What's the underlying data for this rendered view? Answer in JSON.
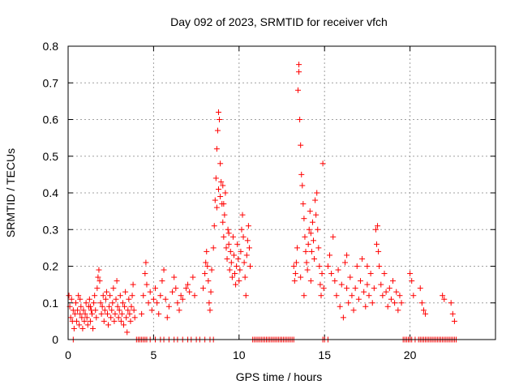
{
  "chart_data": {
    "type": "scatter",
    "title": "Day 092 of 2023, SRMTID for receiver vfch",
    "xlabel": "GPS time / hours",
    "ylabel": "SRMTID / TECUs",
    "xlim": [
      0,
      25
    ],
    "ylim": [
      0,
      0.8
    ],
    "xticks": [
      0,
      5,
      10,
      15,
      20
    ],
    "xtick_labels": [
      "0",
      "5",
      "10",
      "15",
      "20"
    ],
    "yticks": [
      0,
      0.1,
      0.2,
      0.3,
      0.4,
      0.5,
      0.6,
      0.7,
      0.8
    ],
    "ytick_labels": [
      "0",
      "0.1",
      "0.2",
      "0.3",
      "0.4",
      "0.5",
      "0.6",
      "0.7",
      "0.8"
    ],
    "grid": true,
    "marker": "+",
    "series": [
      {
        "name": "SRMTID",
        "color": "#ff0000",
        "points": [
          [
            0.05,
            0.12
          ],
          [
            0.1,
            0.09
          ],
          [
            0.15,
            0.06
          ],
          [
            0.2,
            0.11
          ],
          [
            0.25,
            0.05
          ],
          [
            0.3,
            0.08
          ],
          [
            0.35,
            0.03
          ],
          [
            0.4,
            0.07
          ],
          [
            0.45,
            0.1
          ],
          [
            0.5,
            0.05
          ],
          [
            0.55,
            0.08
          ],
          [
            0.6,
            0.12
          ],
          [
            0.65,
            0.04
          ],
          [
            0.7,
            0.07
          ],
          [
            0.75,
            0.09
          ],
          [
            0.8,
            0.06
          ],
          [
            0.85,
            0.03
          ],
          [
            0.9,
            0.08
          ],
          [
            0.95,
            0.05
          ],
          [
            1.0,
            0.07
          ],
          [
            1.05,
            0.1
          ],
          [
            1.1,
            0.06
          ],
          [
            1.15,
            0.04
          ],
          [
            1.2,
            0.09
          ],
          [
            1.25,
            0.11
          ],
          [
            1.3,
            0.05
          ],
          [
            1.35,
            0.08
          ],
          [
            1.4,
            0.07
          ],
          [
            1.45,
            0.03
          ],
          [
            1.5,
            0.1
          ],
          [
            1.55,
            0.12
          ],
          [
            1.6,
            0.08
          ],
          [
            1.65,
            0.06
          ],
          [
            1.7,
            0.14
          ],
          [
            1.75,
            0.17
          ],
          [
            1.8,
            0.19
          ],
          [
            1.85,
            0.16
          ],
          [
            1.9,
            0.1
          ],
          [
            1.95,
            0.07
          ],
          [
            2.0,
            0.09
          ],
          [
            2.05,
            0.12
          ],
          [
            2.1,
            0.05
          ],
          [
            2.15,
            0.08
          ],
          [
            2.2,
            0.11
          ],
          [
            2.25,
            0.13
          ],
          [
            2.3,
            0.07
          ],
          [
            2.35,
            0.04
          ],
          [
            2.4,
            0.09
          ],
          [
            2.45,
            0.12
          ],
          [
            2.5,
            0.06
          ],
          [
            2.55,
            0.08
          ],
          [
            2.6,
            0.1
          ],
          [
            2.65,
            0.14
          ],
          [
            2.7,
            0.05
          ],
          [
            2.75,
            0.07
          ],
          [
            2.8,
            0.11
          ],
          [
            2.85,
            0.16
          ],
          [
            2.9,
            0.09
          ],
          [
            2.95,
            0.06
          ],
          [
            3.0,
            0.08
          ],
          [
            3.05,
            0.12
          ],
          [
            3.1,
            0.05
          ],
          [
            3.15,
            0.07
          ],
          [
            3.2,
            0.1
          ],
          [
            3.25,
            0.04
          ],
          [
            3.3,
            0.09
          ],
          [
            3.35,
            0.13
          ],
          [
            3.4,
            0.06
          ],
          [
            3.45,
            0.02
          ],
          [
            3.5,
            0.08
          ],
          [
            3.55,
            0.11
          ],
          [
            3.6,
            0.07
          ],
          [
            3.65,
            0.05
          ],
          [
            3.7,
            0.09
          ],
          [
            3.75,
            0.12
          ],
          [
            3.8,
            0.15
          ],
          [
            3.85,
            0.08
          ],
          [
            3.9,
            0.06
          ],
          [
            1.3,
            0.09
          ],
          [
            0.7,
            0.11
          ],
          [
            4.3,
            0.07
          ],
          [
            4.4,
            0.12
          ],
          [
            4.5,
            0.18
          ],
          [
            4.55,
            0.21
          ],
          [
            4.6,
            0.15
          ],
          [
            4.7,
            0.1
          ],
          [
            4.8,
            0.13
          ],
          [
            4.9,
            0.08
          ],
          [
            5.0,
            0.11
          ],
          [
            5.1,
            0.14
          ],
          [
            5.2,
            0.1
          ],
          [
            5.3,
            0.07
          ],
          [
            5.4,
            0.12
          ],
          [
            5.5,
            0.16
          ],
          [
            5.6,
            0.19
          ],
          [
            5.7,
            0.11
          ],
          [
            5.8,
            0.06
          ],
          [
            5.9,
            0.09
          ],
          [
            6.1,
            0.13
          ],
          [
            6.2,
            0.17
          ],
          [
            6.3,
            0.14
          ],
          [
            6.4,
            0.1
          ],
          [
            6.5,
            0.08
          ],
          [
            6.6,
            0.12
          ],
          [
            6.7,
            0.11
          ],
          [
            6.9,
            0.14
          ],
          [
            7.0,
            0.15
          ],
          [
            7.1,
            0.13
          ],
          [
            7.3,
            0.17
          ],
          [
            7.4,
            0.12
          ],
          [
            7.9,
            0.14
          ],
          [
            8.0,
            0.18
          ],
          [
            8.05,
            0.21
          ],
          [
            8.1,
            0.24
          ],
          [
            8.15,
            0.2
          ],
          [
            8.2,
            0.16
          ],
          [
            8.25,
            0.1
          ],
          [
            8.3,
            0.08
          ],
          [
            8.35,
            0.13
          ],
          [
            8.4,
            0.19
          ],
          [
            8.5,
            0.25
          ],
          [
            8.55,
            0.31
          ],
          [
            8.6,
            0.38
          ],
          [
            8.65,
            0.44
          ],
          [
            8.7,
            0.52
          ],
          [
            8.75,
            0.57
          ],
          [
            8.8,
            0.62
          ],
          [
            8.85,
            0.6
          ],
          [
            8.9,
            0.48
          ],
          [
            8.95,
            0.43
          ],
          [
            9.0,
            0.37
          ],
          [
            9.05,
            0.32
          ],
          [
            9.1,
            0.28
          ],
          [
            9.15,
            0.34
          ],
          [
            9.2,
            0.4
          ],
          [
            9.25,
            0.25
          ],
          [
            9.3,
            0.22
          ],
          [
            9.35,
            0.3
          ],
          [
            9.4,
            0.26
          ],
          [
            9.45,
            0.19
          ],
          [
            9.5,
            0.24
          ],
          [
            9.55,
            0.21
          ],
          [
            9.6,
            0.17
          ],
          [
            9.65,
            0.28
          ],
          [
            9.7,
            0.23
          ],
          [
            9.75,
            0.18
          ],
          [
            9.8,
            0.15
          ],
          [
            9.85,
            0.2
          ],
          [
            9.9,
            0.26
          ],
          [
            9.95,
            0.22
          ],
          [
            10.0,
            0.16
          ],
          [
            10.05,
            0.19
          ],
          [
            10.1,
            0.24
          ],
          [
            10.15,
            0.3
          ],
          [
            10.2,
            0.34
          ],
          [
            10.25,
            0.28
          ],
          [
            10.3,
            0.21
          ],
          [
            10.35,
            0.17
          ],
          [
            10.4,
            0.12
          ],
          [
            10.45,
            0.23
          ],
          [
            10.5,
            0.27
          ],
          [
            10.55,
            0.31
          ],
          [
            10.6,
            0.25
          ],
          [
            10.65,
            0.2
          ],
          [
            8.7,
            0.36
          ],
          [
            8.9,
            0.39
          ],
          [
            9.05,
            0.42
          ],
          [
            8.8,
            0.41
          ],
          [
            9.1,
            0.37
          ],
          [
            9.4,
            0.29
          ],
          [
            13.2,
            0.2
          ],
          [
            13.25,
            0.16
          ],
          [
            13.3,
            0.18
          ],
          [
            13.35,
            0.21
          ],
          [
            13.4,
            0.25
          ],
          [
            13.45,
            0.68
          ],
          [
            13.5,
            0.75
          ],
          [
            13.5,
            0.73
          ],
          [
            13.55,
            0.6
          ],
          [
            13.6,
            0.53
          ],
          [
            13.65,
            0.45
          ],
          [
            13.7,
            0.42
          ],
          [
            13.75,
            0.37
          ],
          [
            13.8,
            0.33
          ],
          [
            13.85,
            0.28
          ],
          [
            13.9,
            0.24
          ],
          [
            13.95,
            0.21
          ],
          [
            14.0,
            0.19
          ],
          [
            14.05,
            0.26
          ],
          [
            14.1,
            0.3
          ],
          [
            14.15,
            0.35
          ],
          [
            14.2,
            0.29
          ],
          [
            14.25,
            0.24
          ],
          [
            14.3,
            0.32
          ],
          [
            14.35,
            0.27
          ],
          [
            14.4,
            0.22
          ],
          [
            14.45,
            0.38
          ],
          [
            14.5,
            0.34
          ],
          [
            14.55,
            0.4
          ],
          [
            14.6,
            0.3
          ],
          [
            14.65,
            0.25
          ],
          [
            14.7,
            0.2
          ],
          [
            14.75,
            0.15
          ],
          [
            14.8,
            0.12
          ],
          [
            14.85,
            0.18
          ],
          [
            14.9,
            0.48
          ],
          [
            14.95,
            0.14
          ],
          [
            13.6,
            0.17
          ],
          [
            13.8,
            0.12
          ],
          [
            14.2,
            0.16
          ],
          [
            15.2,
            0.2
          ],
          [
            15.3,
            0.23
          ],
          [
            15.4,
            0.18
          ],
          [
            15.5,
            0.28
          ],
          [
            15.6,
            0.16
          ],
          [
            15.7,
            0.12
          ],
          [
            15.8,
            0.19
          ],
          [
            15.9,
            0.09
          ],
          [
            16.0,
            0.15
          ],
          [
            16.1,
            0.06
          ],
          [
            16.2,
            0.21
          ],
          [
            16.3,
            0.14
          ],
          [
            16.4,
            0.1
          ],
          [
            16.5,
            0.17
          ],
          [
            16.6,
            0.12
          ],
          [
            16.7,
            0.08
          ],
          [
            16.8,
            0.14
          ],
          [
            16.9,
            0.2
          ],
          [
            17.0,
            0.11
          ],
          [
            17.1,
            0.16
          ],
          [
            17.2,
            0.22
          ],
          [
            17.3,
            0.13
          ],
          [
            17.4,
            0.09
          ],
          [
            17.5,
            0.15
          ],
          [
            17.6,
            0.12
          ],
          [
            17.7,
            0.18
          ],
          [
            17.8,
            0.1
          ],
          [
            17.9,
            0.14
          ],
          [
            18.0,
            0.3
          ],
          [
            18.05,
            0.26
          ],
          [
            18.1,
            0.31
          ],
          [
            18.15,
            0.24
          ],
          [
            18.2,
            0.2
          ],
          [
            18.3,
            0.15
          ],
          [
            18.4,
            0.12
          ],
          [
            18.5,
            0.18
          ],
          [
            18.6,
            0.13
          ],
          [
            18.7,
            0.09
          ],
          [
            18.8,
            0.14
          ],
          [
            18.9,
            0.11
          ],
          [
            19.0,
            0.16
          ],
          [
            19.1,
            0.1
          ],
          [
            19.2,
            0.13
          ],
          [
            19.3,
            0.08
          ],
          [
            19.4,
            0.12
          ],
          [
            19.5,
            0.1
          ],
          [
            20.0,
            0.18
          ],
          [
            20.1,
            0.16
          ],
          [
            20.2,
            0.12
          ],
          [
            20.6,
            0.14
          ],
          [
            20.7,
            0.1
          ],
          [
            20.8,
            0.08
          ],
          [
            20.9,
            0.07
          ],
          [
            21.9,
            0.12
          ],
          [
            22.0,
            0.11
          ],
          [
            22.4,
            0.1
          ],
          [
            22.5,
            0.07
          ],
          [
            22.6,
            0.05
          ],
          [
            16.3,
            0.23
          ],
          [
            17.5,
            0.2
          ]
        ]
      }
    ],
    "zero_markers": [
      0.3,
      4.0,
      4.1,
      4.2,
      4.3,
      4.4,
      4.5,
      4.6,
      4.8,
      5.1,
      5.4,
      5.6,
      5.9,
      6.2,
      6.4,
      6.7,
      7.0,
      7.2,
      7.5,
      7.7,
      8.0,
      8.3,
      8.5,
      10.8,
      10.9,
      11.0,
      11.1,
      11.2,
      11.3,
      11.4,
      11.5,
      11.6,
      11.7,
      11.8,
      11.9,
      12.0,
      12.1,
      12.2,
      12.3,
      12.4,
      12.5,
      12.6,
      12.7,
      12.8,
      12.9,
      13.0,
      13.1,
      13.2,
      14.9,
      15.0,
      15.2,
      19.6,
      19.7,
      19.8,
      19.9,
      20.0,
      20.1,
      20.3,
      20.5,
      20.6,
      20.7,
      20.8,
      20.9,
      21.0,
      21.1,
      21.2,
      21.3,
      21.4,
      21.5,
      21.6,
      21.7,
      21.8,
      21.9,
      22.0,
      22.1,
      22.2,
      22.3,
      22.4,
      22.5,
      22.6,
      22.7
    ]
  }
}
